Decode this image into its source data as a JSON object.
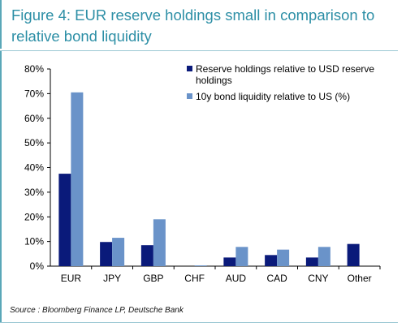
{
  "figure": {
    "title": "Figure 4: EUR reserve holdings small in comparison to relative bond liquidity",
    "source": "Source : Bloomberg Finance LP, Deutsche Bank"
  },
  "chart_data": {
    "type": "bar",
    "categories": [
      "EUR",
      "JPY",
      "GBP",
      "CHF",
      "AUD",
      "CAD",
      "CNY",
      "Other"
    ],
    "series": [
      {
        "name": "Reserve holdings relative to USD reserve holdings",
        "color": "#0a1a7a",
        "values": [
          37.5,
          9.8,
          8.5,
          0.0,
          3.5,
          4.5,
          3.5,
          9.0
        ]
      },
      {
        "name": "10y bond liquidity relative to US (%)",
        "color": "#6a93c9",
        "values": [
          70.5,
          11.5,
          19.0,
          0.3,
          7.8,
          6.7,
          7.8,
          null
        ]
      }
    ],
    "ylim": [
      0,
      80
    ],
    "yticks": [
      "0%",
      "10%",
      "20%",
      "30%",
      "40%",
      "50%",
      "60%",
      "70%",
      "80%"
    ],
    "grid": false,
    "legend": "top-right"
  }
}
